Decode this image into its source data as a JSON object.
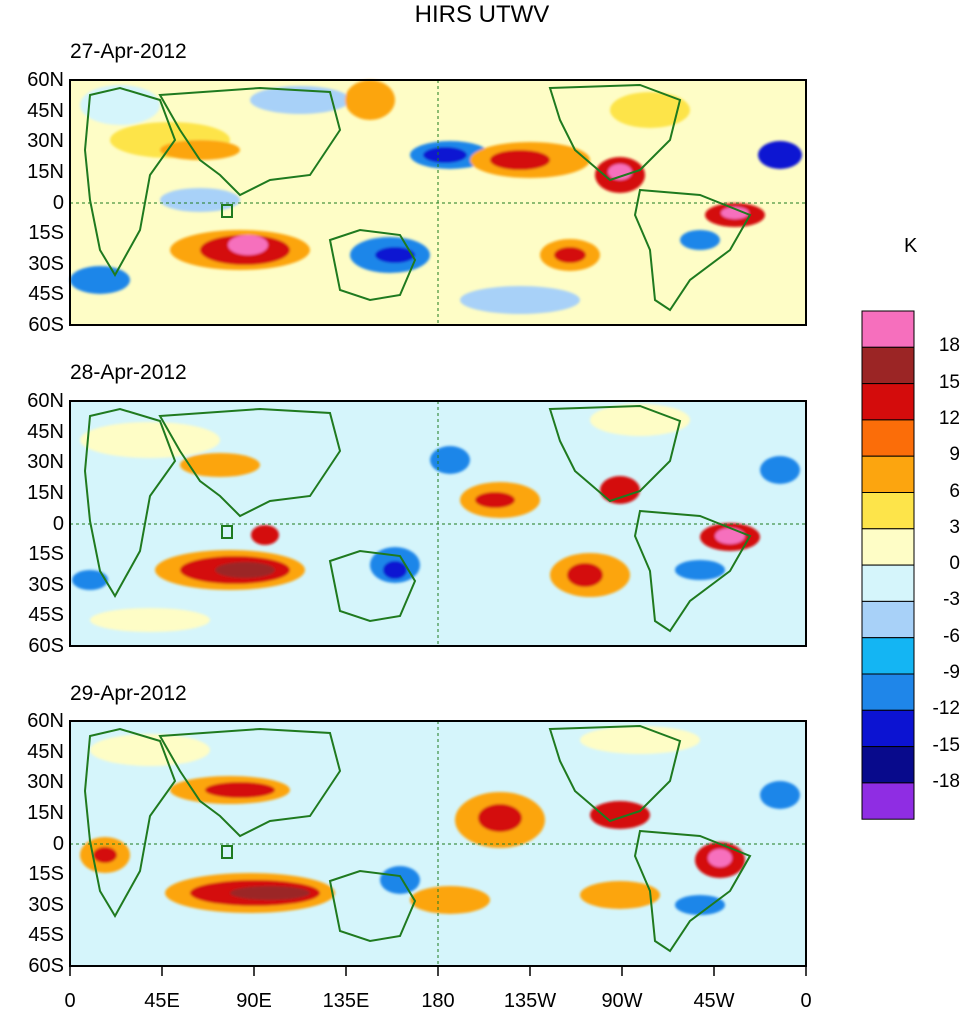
{
  "title": "HIRS UTWV",
  "panels": [
    {
      "date": "27-Apr-2012"
    },
    {
      "date": "28-Apr-2012"
    },
    {
      "date": "29-Apr-2012"
    }
  ],
  "lat_labels": [
    "60N",
    "45N",
    "30N",
    "15N",
    "0",
    "15S",
    "30S",
    "45S",
    "60S"
  ],
  "lon_labels": [
    "0",
    "45E",
    "90E",
    "135E",
    "180",
    "135W",
    "90W",
    "45W",
    "0"
  ],
  "colorbar": {
    "unit": "K",
    "labels": [
      "18",
      "15",
      "12",
      "9",
      "6",
      "3",
      "0",
      "-3",
      "-6",
      "-9",
      "-12",
      "-15",
      "-18"
    ],
    "colors": [
      "#f66fbd",
      "#9b2525",
      "#d40c0c",
      "#fb6d09",
      "#fca50f",
      "#fde44a",
      "#fefdc6",
      "#d5f5fb",
      "#a8d1f8",
      "#14b5f3",
      "#1f86e9",
      "#0c13d2",
      "#080a8c",
      "#8f2de3"
    ]
  }
}
